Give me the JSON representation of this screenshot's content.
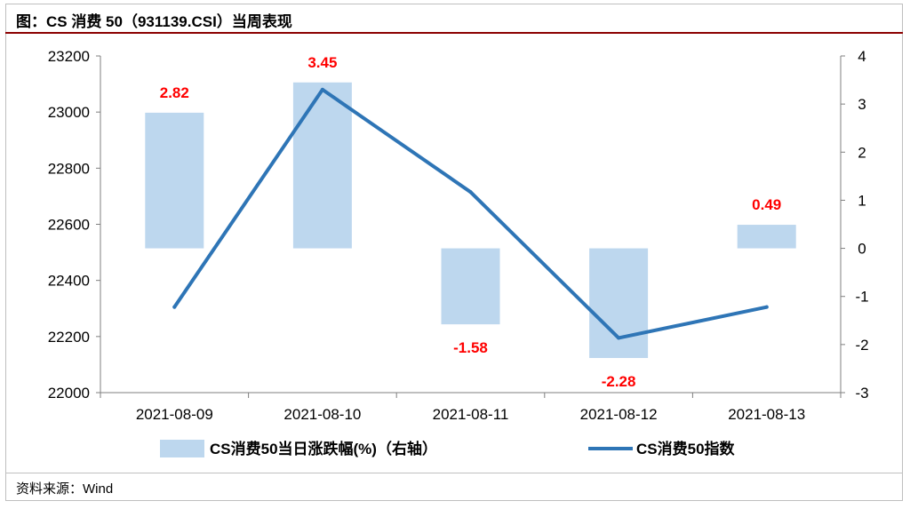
{
  "header": {
    "title": "图：CS 消费 50（931139.CSI）当周表现"
  },
  "footer": {
    "source": "资料来源：Wind"
  },
  "chart_data": {
    "type": "bar",
    "title": "图：CS 消费 50（931139.CSI）当周表现",
    "categories": [
      "2021-08-09",
      "2021-08-10",
      "2021-08-11",
      "2021-08-12",
      "2021-08-13"
    ],
    "y_left": {
      "min": 22000,
      "max": 23200,
      "ticks": [
        22000,
        22200,
        22400,
        22600,
        22800,
        23000,
        23200
      ]
    },
    "y_right": {
      "min": -3,
      "max": 4,
      "ticks": [
        -3,
        -2,
        -1,
        0,
        1,
        2,
        3,
        4
      ]
    },
    "series": [
      {
        "name": "CS消费50当日涨跌幅(%)（右轴）",
        "type": "bar",
        "axis": "right",
        "values": [
          2.82,
          3.45,
          -1.58,
          -2.28,
          0.49
        ],
        "color": "#bdd7ee",
        "label_color": "#ff0000"
      },
      {
        "name": "CS消费50指数",
        "type": "line",
        "axis": "left",
        "values": [
          22305,
          23080,
          22715,
          22195,
          22305
        ],
        "color": "#2e75b6"
      }
    ],
    "grid": false,
    "legend": "bottom"
  }
}
